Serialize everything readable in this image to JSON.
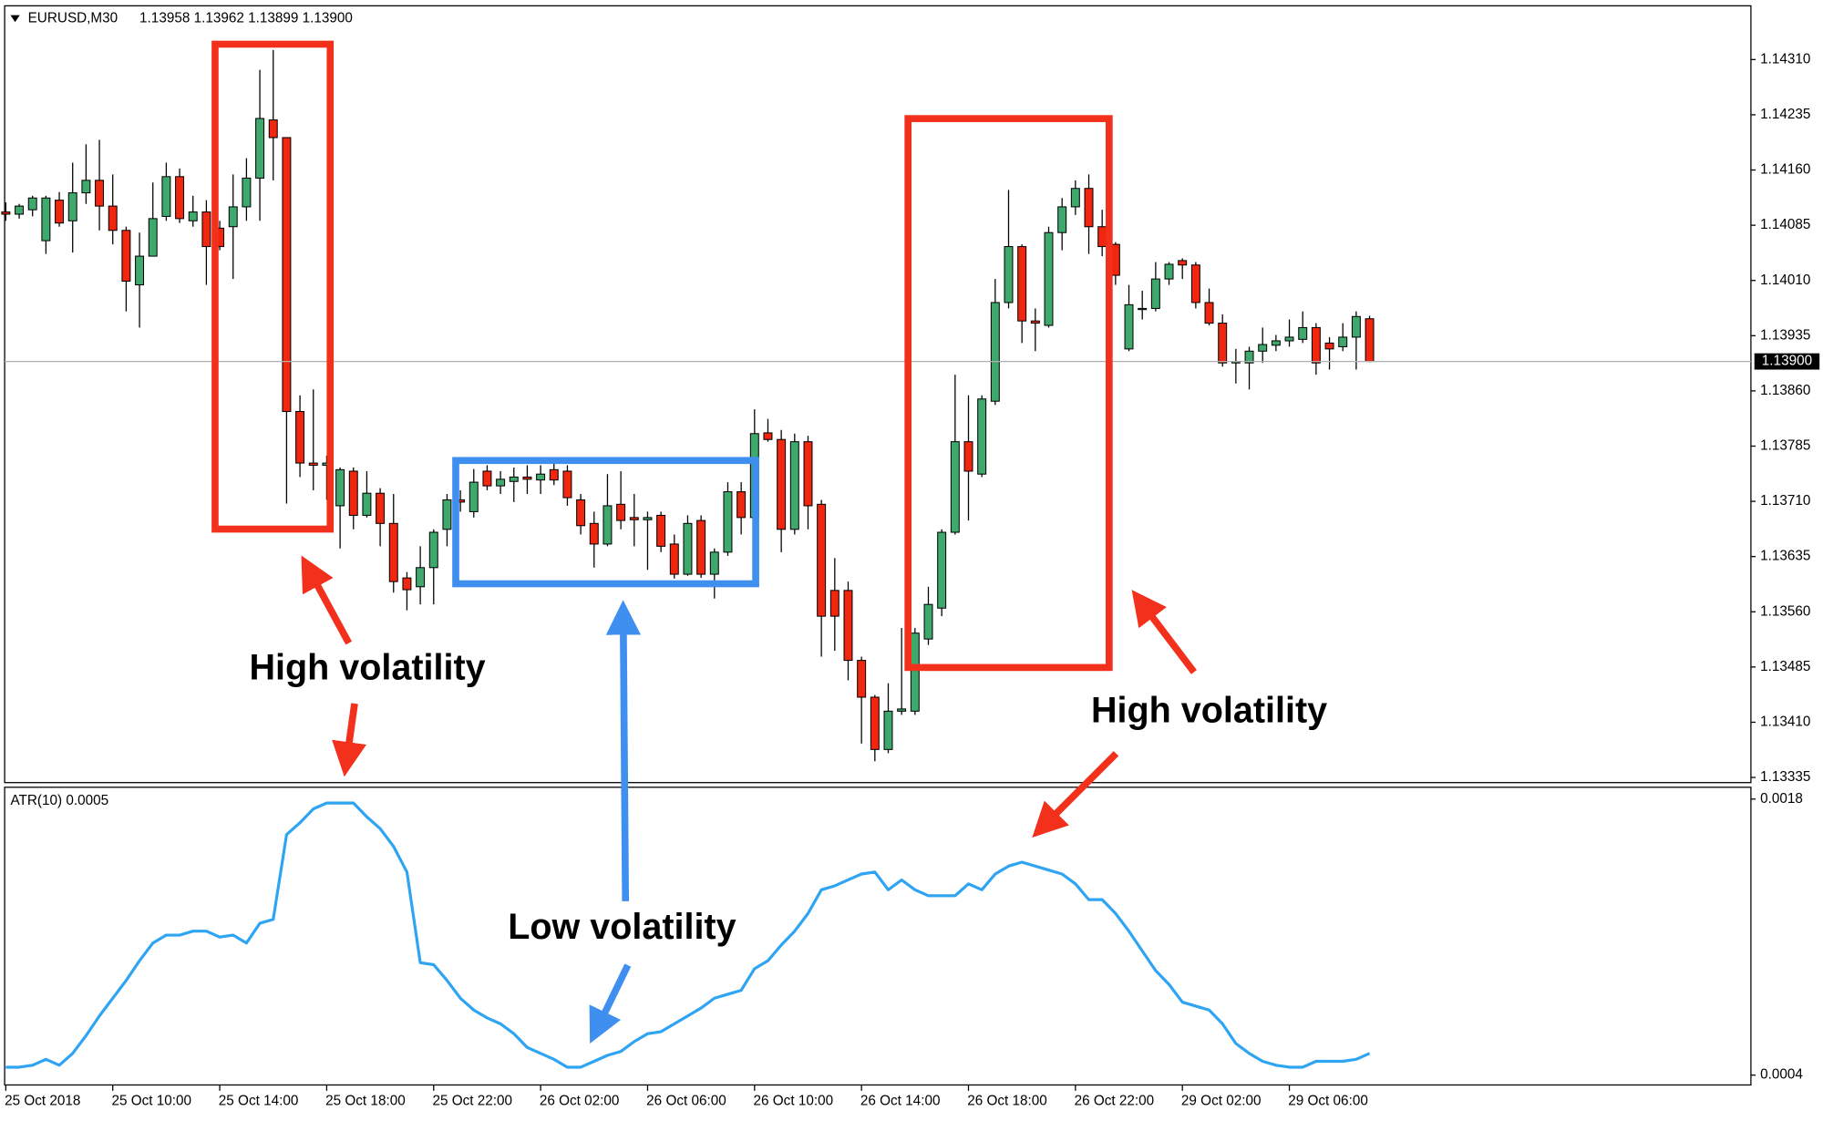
{
  "chart_data": [
    {
      "type": "candlestick",
      "symbol": "EURUSD,M30",
      "quote": "1.13958 1.13962 1.13899 1.13900",
      "categories": [
        "25 Oct 2018",
        null,
        null,
        null,
        null,
        null,
        null,
        null,
        "25 Oct 10:00",
        null,
        null,
        null,
        null,
        null,
        null,
        null,
        "25 Oct 14:00",
        null,
        null,
        null,
        null,
        null,
        null,
        null,
        "25 Oct 18:00",
        null,
        null,
        null,
        null,
        null,
        null,
        null,
        "25 Oct 22:00",
        null,
        null,
        null,
        null,
        null,
        null,
        null,
        "26 Oct 02:00",
        null,
        null,
        null,
        null,
        null,
        null,
        null,
        "26 Oct 06:00",
        null,
        null,
        null,
        null,
        null,
        null,
        null,
        "26 Oct 10:00",
        null,
        null,
        null,
        null,
        null,
        null,
        null,
        "26 Oct 14:00",
        null,
        null,
        null,
        null,
        null,
        null,
        null,
        "26 Oct 18:00",
        null,
        null,
        null,
        null,
        null,
        null,
        null,
        "26 Oct 22:00",
        null,
        null,
        null,
        null,
        null,
        null,
        null,
        "29 Oct 02:00",
        null,
        null,
        null,
        null,
        null,
        null,
        null,
        "29 Oct 06:00",
        null,
        null,
        null,
        null,
        null,
        null
      ],
      "open": [
        1.14103,
        1.141,
        1.14106,
        1.14064,
        1.14119,
        1.14091,
        1.14129,
        1.14146,
        1.14111,
        1.14078,
        1.14004,
        1.14043,
        1.14097,
        1.14151,
        1.14091,
        1.14103,
        1.14081,
        1.14083,
        1.1411,
        1.14149,
        1.14228,
        1.14204,
        1.13832,
        1.13762,
        1.13759,
        1.13704,
        1.13751,
        1.13691,
        1.13721,
        1.1368,
        1.13606,
        1.13594,
        1.1362,
        1.13672,
        1.13712,
        1.13696,
        1.13751,
        1.13731,
        1.13737,
        1.13743,
        1.13739,
        1.13753,
        1.13751,
        1.13712,
        1.1368,
        1.13652,
        1.13706,
        1.13688,
        1.13685,
        1.13691,
        1.13652,
        1.13611,
        1.13684,
        1.13611,
        1.13641,
        1.13723,
        1.13688,
        1.13803,
        1.13794,
        1.13672,
        1.13791,
        1.13706,
        1.13589,
        1.13589,
        1.13494,
        1.13444,
        1.13373,
        1.13425,
        1.13425,
        1.13523,
        1.13565,
        1.13668,
        1.13791,
        1.13747,
        1.13846,
        1.1398,
        1.14056,
        1.13955,
        1.13949,
        1.14075,
        1.1411,
        1.14135,
        1.14083,
        1.14059,
        1.13917,
        1.13971,
        1.13972,
        1.14012,
        1.14037,
        1.14031,
        1.1398,
        1.13952,
        1.13898,
        1.13898,
        1.13914,
        1.13922,
        1.13928,
        1.1393,
        1.13946,
        1.13925,
        1.1392,
        1.13933,
        1.13958
      ],
      "high": [
        1.14116,
        1.14114,
        1.14125,
        1.14125,
        1.1413,
        1.1417,
        1.14195,
        1.14201,
        1.14154,
        1.14083,
        1.14075,
        1.14143,
        1.1417,
        1.14162,
        1.14125,
        1.14119,
        1.14091,
        1.14154,
        1.14176,
        1.14296,
        1.14323,
        1.14204,
        1.13854,
        1.13862,
        1.13772,
        1.13756,
        1.13756,
        1.13751,
        1.13728,
        1.1372,
        1.13614,
        1.13649,
        1.13672,
        1.1372,
        1.13725,
        1.13754,
        1.13759,
        1.13751,
        1.13756,
        1.13759,
        1.13759,
        1.13762,
        1.13759,
        1.1372,
        1.13696,
        1.13747,
        1.13751,
        1.1372,
        1.13696,
        1.13696,
        1.13665,
        1.13691,
        1.13691,
        1.13646,
        1.13736,
        1.13736,
        1.13835,
        1.13822,
        1.13807,
        1.13802,
        1.13799,
        1.13712,
        1.13633,
        1.13601,
        1.13499,
        1.13447,
        1.13463,
        1.13538,
        1.13538,
        1.13594,
        1.13672,
        1.13882,
        1.13854,
        1.13854,
        1.14012,
        1.14133,
        1.14059,
        1.13972,
        1.14083,
        1.14122,
        1.14146,
        1.14154,
        1.14106,
        1.14062,
        1.14004,
        1.13996,
        1.14035,
        1.14035,
        1.1404,
        1.14035,
        1.13999,
        1.13964,
        1.13917,
        1.1392,
        1.13946,
        1.13936,
        1.13957,
        1.13968,
        1.13952,
        1.13933,
        1.13952,
        1.13968,
        1.13962
      ],
      "low": [
        1.14091,
        1.14094,
        1.14097,
        1.14046,
        1.14083,
        1.14048,
        1.14114,
        1.14078,
        1.14059,
        1.13968,
        1.13946,
        1.14043,
        1.14091,
        1.14088,
        1.14083,
        1.14004,
        1.14051,
        1.14012,
        1.14091,
        1.14091,
        1.14146,
        1.13707,
        1.13743,
        1.13725,
        1.13712,
        1.13646,
        1.13672,
        1.13688,
        1.13649,
        1.13586,
        1.13562,
        1.1357,
        1.1357,
        1.13649,
        1.13696,
        1.13688,
        1.13725,
        1.1372,
        1.13709,
        1.1372,
        1.1372,
        1.13732,
        1.13704,
        1.13665,
        1.1362,
        1.13649,
        1.13672,
        1.13649,
        1.13617,
        1.13641,
        1.13605,
        1.13609,
        1.13606,
        1.13578,
        1.13636,
        1.13665,
        1.13684,
        1.13791,
        1.13641,
        1.13665,
        1.13672,
        1.13499,
        1.13507,
        1.13467,
        1.13381,
        1.13357,
        1.13368,
        1.1342,
        1.1342,
        1.13515,
        1.13554,
        1.13665,
        1.13684,
        1.13743,
        1.13841,
        1.13972,
        1.13925,
        1.13914,
        1.13946,
        1.14051,
        1.14099,
        1.14046,
        1.14043,
        1.14004,
        1.13914,
        1.13957,
        1.13968,
        1.14004,
        1.14012,
        1.13972,
        1.13949,
        1.13893,
        1.1387,
        1.13862,
        1.13898,
        1.13914,
        1.1392,
        1.13925,
        1.13882,
        1.13889,
        1.13914,
        1.13889,
        1.13899
      ],
      "close": [
        1.141,
        1.14111,
        1.14122,
        1.14122,
        1.14088,
        1.14129,
        1.14146,
        1.14111,
        1.14078,
        1.14009,
        1.14043,
        1.14094,
        1.14151,
        1.14094,
        1.14103,
        1.14056,
        1.14056,
        1.1411,
        1.14149,
        1.1423,
        1.14204,
        1.13832,
        1.13762,
        1.13759,
        1.13762,
        1.13753,
        1.13691,
        1.13721,
        1.1368,
        1.13601,
        1.1359,
        1.1362,
        1.13668,
        1.13712,
        1.13709,
        1.13736,
        1.13731,
        1.1374,
        1.13743,
        1.1374,
        1.13747,
        1.13739,
        1.13715,
        1.13677,
        1.13652,
        1.13704,
        1.13684,
        1.13685,
        1.13688,
        1.13649,
        1.13611,
        1.1368,
        1.13611,
        1.13641,
        1.13723,
        1.13688,
        1.13802,
        1.13794,
        1.13672,
        1.13791,
        1.13704,
        1.13554,
        1.13554,
        1.13494,
        1.13444,
        1.13373,
        1.13425,
        1.13428,
        1.13531,
        1.1357,
        1.13668,
        1.13791,
        1.13751,
        1.13849,
        1.1398,
        1.14056,
        1.13955,
        1.13952,
        1.14075,
        1.1411,
        1.14135,
        1.14083,
        1.14056,
        1.14017,
        1.13977,
        1.13972,
        1.14012,
        1.14032,
        1.14031,
        1.1398,
        1.13952,
        1.13898,
        1.139,
        1.13914,
        1.13923,
        1.13928,
        1.13933,
        1.13946,
        1.13898,
        1.13917,
        1.13933,
        1.13961,
        1.139
      ],
      "up_color": "#3fa86c",
      "down_color": "#f0260e",
      "wick_color": "#000000",
      "ylim": [
        1.13328,
        1.14383
      ],
      "yticks": [
        {
          "value": 1.1431,
          "label": "1.14310"
        },
        1.14235,
        {
          "value": 1.1416,
          "label": "1.14160"
        },
        1.14085,
        {
          "value": 1.1401,
          "label": "1.14010"
        },
        1.13935,
        {
          "value": 1.1386,
          "label": "1.13860"
        },
        1.13785,
        {
          "value": 1.1371,
          "label": "1.13710"
        },
        1.13635,
        {
          "value": 1.1356,
          "label": "1.13560"
        },
        1.13485,
        {
          "value": 1.1341,
          "label": "1.13410"
        },
        1.13335
      ],
      "price_line": {
        "value": 1.139,
        "label": "1.13900"
      }
    },
    {
      "type": "line",
      "title": "ATR(10) 0.0005",
      "color": "#2ea4f2",
      "values": [
        0.00044,
        0.00044,
        0.00045,
        0.00048,
        0.00045,
        0.00051,
        0.0006,
        0.0007,
        0.00079,
        0.00088,
        0.00098,
        0.00107,
        0.00111,
        0.00111,
        0.00113,
        0.00113,
        0.0011,
        0.00111,
        0.00107,
        0.00117,
        0.00119,
        0.00162,
        0.00168,
        0.00175,
        0.00178,
        0.00178,
        0.00178,
        0.00171,
        0.00165,
        0.00156,
        0.00143,
        0.00097,
        0.00096,
        0.00088,
        0.00079,
        0.00073,
        0.00069,
        0.00066,
        0.00061,
        0.00054,
        0.00051,
        0.00048,
        0.00044,
        0.00044,
        0.00047,
        0.0005,
        0.00052,
        0.00057,
        0.00061,
        0.00062,
        0.00066,
        0.0007,
        0.00074,
        0.00079,
        0.00081,
        0.00083,
        0.00094,
        0.00098,
        0.00106,
        0.00113,
        0.00122,
        0.00134,
        0.00136,
        0.00139,
        0.00142,
        0.00143,
        0.00134,
        0.00139,
        0.00134,
        0.00131,
        0.00131,
        0.00131,
        0.00137,
        0.00134,
        0.00142,
        0.00146,
        0.00148,
        0.00146,
        0.00144,
        0.00142,
        0.00137,
        0.00129,
        0.00129,
        0.00122,
        0.00113,
        0.00103,
        0.00093,
        0.00086,
        0.00077,
        0.00075,
        0.00073,
        0.00066,
        0.00056,
        0.00051,
        0.00047,
        0.00045,
        0.00044,
        0.00044,
        0.00047,
        0.00047,
        0.00047,
        0.00048,
        0.00051
      ],
      "ylim": [
        0.00035,
        0.00186
      ],
      "yticks": [
        0.0018,
        0.0004
      ]
    }
  ],
  "annotations": [
    "High volatility",
    "Low volatility",
    "High volatility"
  ]
}
